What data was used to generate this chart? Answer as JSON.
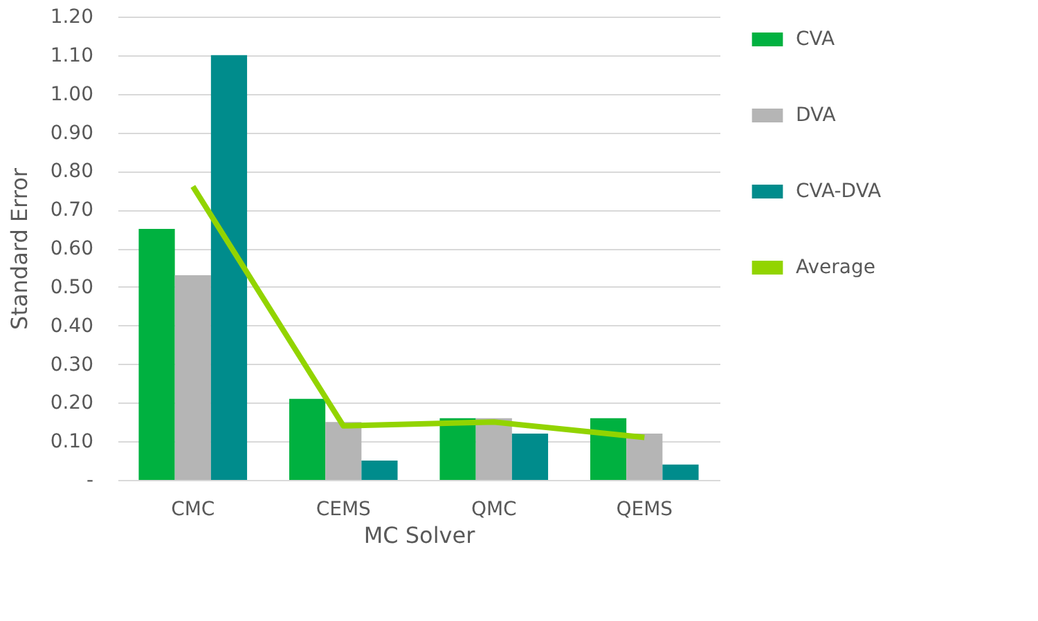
{
  "chart_data": {
    "type": "bar",
    "xlabel": "MC Solver",
    "ylabel": "Standard Error",
    "categories": [
      "CMC",
      "CEMS",
      "QMC",
      "QEMS"
    ],
    "series": [
      {
        "name": "CVA",
        "color": "#00b140",
        "values": [
          0.65,
          0.21,
          0.16,
          0.16
        ]
      },
      {
        "name": "DVA",
        "color": "#b5b5b5",
        "values": [
          0.53,
          0.15,
          0.16,
          0.12
        ]
      },
      {
        "name": "CVA-DVA",
        "color": "#008c8c",
        "values": [
          1.1,
          0.05,
          0.12,
          0.04
        ]
      },
      {
        "name": "Average",
        "type": "line",
        "color": "#92d400",
        "values": [
          0.76,
          0.14,
          0.15,
          0.11
        ]
      }
    ],
    "ylim": [
      0,
      1.2
    ],
    "yticks": [
      {
        "value": 0,
        "label": "-"
      },
      {
        "value": 0.1,
        "label": "0.10"
      },
      {
        "value": 0.2,
        "label": "0.20"
      },
      {
        "value": 0.3,
        "label": "0.30"
      },
      {
        "value": 0.4,
        "label": "0.40"
      },
      {
        "value": 0.5,
        "label": "0.50"
      },
      {
        "value": 0.6,
        "label": "0.60"
      },
      {
        "value": 0.7,
        "label": "0.70"
      },
      {
        "value": 0.8,
        "label": "0.80"
      },
      {
        "value": 0.9,
        "label": "0.90"
      },
      {
        "value": 1.0,
        "label": "1.00"
      },
      {
        "value": 1.1,
        "label": "1.10"
      },
      {
        "value": 1.2,
        "label": "1.20"
      }
    ],
    "grid": "y",
    "legend": "right"
  }
}
